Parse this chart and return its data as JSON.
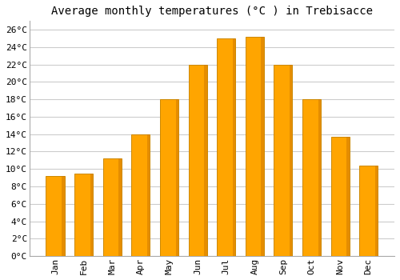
{
  "title": "Average monthly temperatures (°C ) in Trebisacce",
  "months": [
    "Jan",
    "Feb",
    "Mar",
    "Apr",
    "May",
    "Jun",
    "Jul",
    "Aug",
    "Sep",
    "Oct",
    "Nov",
    "Dec"
  ],
  "values": [
    9.2,
    9.5,
    11.2,
    14.0,
    18.0,
    22.0,
    25.0,
    25.2,
    22.0,
    18.0,
    13.7,
    10.4
  ],
  "bar_color": "#FFA500",
  "bar_edge_color": "#CC8800",
  "background_color": "#FFFFFF",
  "plot_background": "#FFFFFF",
  "grid_color": "#CCCCCC",
  "ylim": [
    0,
    27
  ],
  "yticks": [
    0,
    2,
    4,
    6,
    8,
    10,
    12,
    14,
    16,
    18,
    20,
    22,
    24,
    26
  ],
  "title_fontsize": 10,
  "tick_fontsize": 8,
  "bar_width": 0.65
}
